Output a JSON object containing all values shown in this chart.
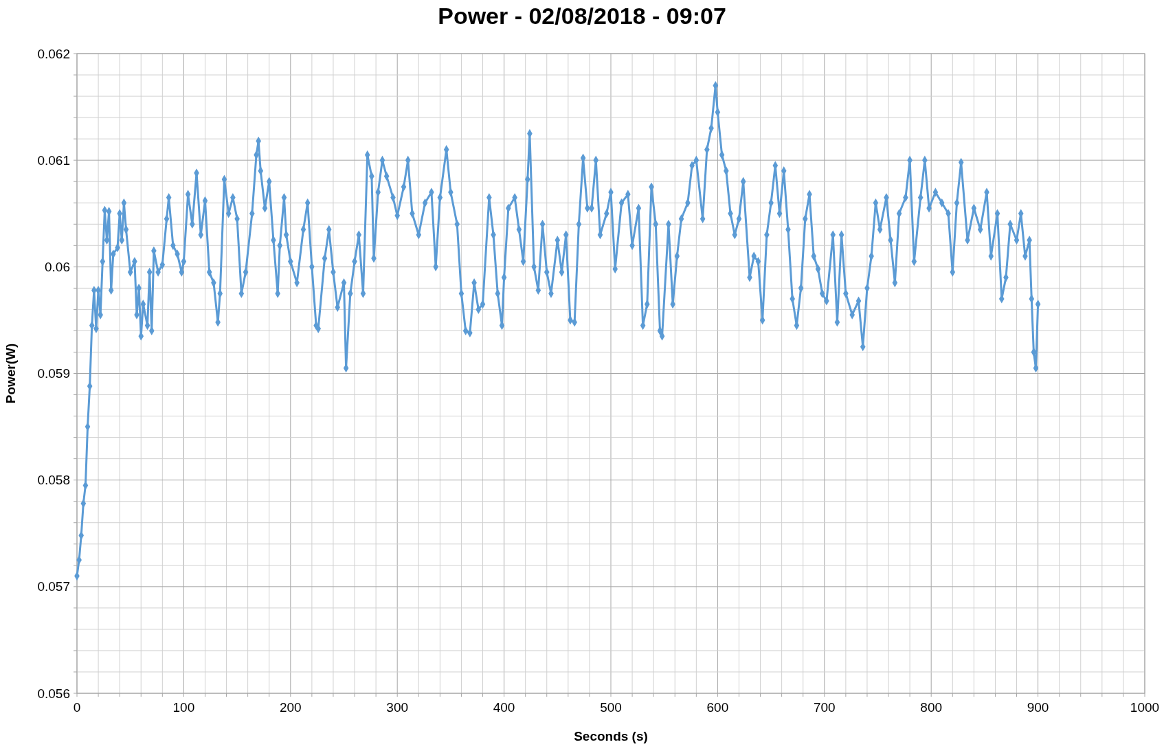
{
  "chart_data": {
    "type": "line",
    "title": "Power - 02/08/2018 - 09:07",
    "xlabel": "Seconds (s)",
    "ylabel": "Power(W)",
    "xlim": [
      0,
      1000
    ],
    "ylim": [
      0.056,
      0.062
    ],
    "xticks": [
      0,
      {
        "value": 20,
        "label": null
      },
      {
        "value": 40,
        "label": null
      },
      {
        "value": 60,
        "label": null
      },
      {
        "value": 80,
        "label": null
      },
      100,
      {
        "value": 120,
        "label": null
      },
      {
        "value": 140,
        "label": null
      },
      {
        "value": 160,
        "label": null
      },
      {
        "value": 180,
        "label": null
      },
      200,
      {
        "value": 220,
        "label": null
      },
      {
        "value": 240,
        "label": null
      },
      {
        "value": 260,
        "label": null
      },
      {
        "value": 280,
        "label": null
      },
      300,
      {
        "value": 320,
        "label": null
      },
      {
        "value": 340,
        "label": null
      },
      {
        "value": 360,
        "label": null
      },
      {
        "value": 380,
        "label": null
      },
      400,
      {
        "value": 420,
        "label": null
      },
      {
        "value": 440,
        "label": null
      },
      {
        "value": 460,
        "label": null
      },
      {
        "value": 480,
        "label": null
      },
      500,
      {
        "value": 520,
        "label": null
      },
      {
        "value": 540,
        "label": null
      },
      {
        "value": 560,
        "label": null
      },
      {
        "value": 580,
        "label": null
      },
      600,
      {
        "value": 620,
        "label": null
      },
      {
        "value": 640,
        "label": null
      },
      {
        "value": 660,
        "label": null
      },
      {
        "value": 680,
        "label": null
      },
      700,
      {
        "value": 720,
        "label": null
      },
      {
        "value": 740,
        "label": null
      },
      {
        "value": 760,
        "label": null
      },
      {
        "value": 780,
        "label": null
      },
      800,
      {
        "value": 820,
        "label": null
      },
      {
        "value": 840,
        "label": null
      },
      {
        "value": 860,
        "label": null
      },
      {
        "value": 880,
        "label": null
      },
      900,
      {
        "value": 920,
        "label": null
      },
      {
        "value": 940,
        "label": null
      },
      {
        "value": 960,
        "label": null
      },
      {
        "value": 980,
        "label": null
      },
      1000
    ],
    "yticks": [
      0.056,
      {
        "value": 0.0562,
        "label": null
      },
      {
        "value": 0.0564,
        "label": null
      },
      {
        "value": 0.0566,
        "label": null
      },
      {
        "value": 0.0568,
        "label": null
      },
      0.057,
      {
        "value": 0.0572,
        "label": null
      },
      {
        "value": 0.0574,
        "label": null
      },
      {
        "value": 0.0576,
        "label": null
      },
      {
        "value": 0.0578,
        "label": null
      },
      0.058,
      {
        "value": 0.0582,
        "label": null
      },
      {
        "value": 0.0584,
        "label": null
      },
      {
        "value": 0.0586,
        "label": null
      },
      {
        "value": 0.0588,
        "label": null
      },
      0.059,
      {
        "value": 0.0592,
        "label": null
      },
      {
        "value": 0.0594,
        "label": null
      },
      {
        "value": 0.0596,
        "label": null
      },
      {
        "value": 0.0598,
        "label": null
      },
      0.06,
      {
        "value": 0.0602,
        "label": null
      },
      {
        "value": 0.0604,
        "label": null
      },
      {
        "value": 0.0606,
        "label": null
      },
      {
        "value": 0.0608,
        "label": null
      },
      0.061,
      {
        "value": 0.0612,
        "label": null
      },
      {
        "value": 0.0614,
        "label": null
      },
      {
        "value": 0.0616,
        "label": null
      },
      {
        "value": 0.0618,
        "label": null
      },
      0.062
    ],
    "grid": true,
    "marker": "diamond",
    "line_style": "solid",
    "x": [
      0,
      2,
      4,
      6,
      8,
      10,
      12,
      14,
      16,
      18,
      20,
      22,
      24,
      26,
      28,
      30,
      32,
      34,
      38,
      40,
      42,
      44,
      46,
      50,
      54,
      56,
      58,
      60,
      62,
      66,
      68,
      70,
      72,
      76,
      80,
      84,
      86,
      90,
      94,
      98,
      100,
      104,
      108,
      112,
      116,
      120,
      124,
      128,
      132,
      134,
      138,
      142,
      146,
      150,
      154,
      158,
      164,
      168,
      170,
      172,
      176,
      180,
      184,
      188,
      190,
      194,
      196,
      200,
      206,
      212,
      216,
      220,
      224,
      226,
      232,
      236,
      240,
      244,
      250,
      252,
      256,
      260,
      264,
      268,
      272,
      276,
      278,
      282,
      286,
      290,
      296,
      300,
      306,
      310,
      314,
      320,
      326,
      332,
      336,
      340,
      346,
      350,
      356,
      360,
      364,
      368,
      372,
      376,
      380,
      386,
      390,
      394,
      398,
      400,
      404,
      410,
      414,
      418,
      422,
      424,
      428,
      432,
      436,
      440,
      444,
      450,
      454,
      458,
      462,
      466,
      470,
      474,
      478,
      482,
      486,
      490,
      496,
      500,
      504,
      510,
      516,
      520,
      526,
      530,
      534,
      538,
      542,
      546,
      548,
      554,
      558,
      562,
      566,
      572,
      576,
      580,
      586,
      590,
      594,
      598,
      600,
      604,
      608,
      612,
      616,
      620,
      624,
      630,
      634,
      638,
      642,
      646,
      650,
      654,
      658,
      662,
      666,
      670,
      674,
      678,
      682,
      686,
      690,
      694,
      698,
      702,
      708,
      712,
      716,
      720,
      726,
      732,
      736,
      740,
      744,
      748,
      752,
      758,
      762,
      766,
      770,
      776,
      780,
      784,
      790,
      794,
      798,
      804,
      810,
      816,
      820,
      824,
      828,
      834,
      840,
      846,
      852,
      856,
      862,
      866,
      870,
      874,
      880,
      884,
      888,
      892,
      894,
      896,
      898,
      900
    ],
    "series": [
      {
        "color": "#5b9bd5",
        "values": [
          0.0571,
          0.05725,
          0.05748,
          0.05778,
          0.05795,
          0.0585,
          0.05888,
          0.05945,
          0.05978,
          0.05942,
          0.05978,
          0.05955,
          0.06005,
          0.06053,
          0.06025,
          0.06052,
          0.05978,
          0.06012,
          0.06018,
          0.0605,
          0.06025,
          0.0606,
          0.06035,
          0.05995,
          0.06005,
          0.05955,
          0.0598,
          0.05935,
          0.05965,
          0.05945,
          0.05995,
          0.0594,
          0.06015,
          0.05995,
          0.06002,
          0.06045,
          0.06065,
          0.0602,
          0.06012,
          0.05995,
          0.06005,
          0.06068,
          0.0604,
          0.06088,
          0.0603,
          0.06062,
          0.05995,
          0.05985,
          0.05948,
          0.05975,
          0.06082,
          0.0605,
          0.06065,
          0.06045,
          0.05975,
          0.05995,
          0.0605,
          0.06105,
          0.06118,
          0.0609,
          0.06055,
          0.0608,
          0.06025,
          0.05975,
          0.0602,
          0.06065,
          0.0603,
          0.06005,
          0.05985,
          0.06035,
          0.0606,
          0.06,
          0.05945,
          0.05942,
          0.06008,
          0.06035,
          0.05995,
          0.05962,
          0.05985,
          0.05905,
          0.05975,
          0.06005,
          0.0603,
          0.05975,
          0.06105,
          0.06085,
          0.06008,
          0.0607,
          0.061,
          0.06085,
          0.06065,
          0.06048,
          0.06075,
          0.061,
          0.0605,
          0.0603,
          0.0606,
          0.0607,
          0.06,
          0.06065,
          0.0611,
          0.0607,
          0.0604,
          0.05975,
          0.0594,
          0.05938,
          0.05985,
          0.0596,
          0.05965,
          0.06065,
          0.0603,
          0.05975,
          0.05945,
          0.0599,
          0.06055,
          0.06065,
          0.06035,
          0.06005,
          0.06082,
          0.06125,
          0.06,
          0.05978,
          0.0604,
          0.05995,
          0.05975,
          0.06025,
          0.05995,
          0.0603,
          0.0595,
          0.05948,
          0.0604,
          0.06102,
          0.06055,
          0.06055,
          0.061,
          0.0603,
          0.0605,
          0.0607,
          0.05998,
          0.0606,
          0.06068,
          0.0602,
          0.06055,
          0.05945,
          0.05965,
          0.06075,
          0.0604,
          0.0594,
          0.05935,
          0.0604,
          0.05965,
          0.0601,
          0.06045,
          0.0606,
          0.06095,
          0.061,
          0.06045,
          0.0611,
          0.0613,
          0.0617,
          0.06145,
          0.06105,
          0.0609,
          0.0605,
          0.0603,
          0.06045,
          0.0608,
          0.0599,
          0.0601,
          0.06005,
          0.0595,
          0.0603,
          0.0606,
          0.06095,
          0.0605,
          0.0609,
          0.06035,
          0.0597,
          0.05945,
          0.0598,
          0.06045,
          0.06068,
          0.0601,
          0.05998,
          0.05975,
          0.05968,
          0.0603,
          0.05948,
          0.0603,
          0.05975,
          0.05955,
          0.05968,
          0.05925,
          0.0598,
          0.0601,
          0.0606,
          0.06035,
          0.06065,
          0.06025,
          0.05985,
          0.0605,
          0.06065,
          0.061,
          0.06005,
          0.06065,
          0.061,
          0.06055,
          0.0607,
          0.0606,
          0.0605,
          0.05995,
          0.0606,
          0.06098,
          0.06025,
          0.06055,
          0.06035,
          0.0607,
          0.0601,
          0.0605,
          0.0597,
          0.0599,
          0.0604,
          0.06025,
          0.0605,
          0.0601,
          0.06025,
          0.0597,
          0.0592,
          0.05905,
          0.05965
        ]
      }
    ]
  }
}
